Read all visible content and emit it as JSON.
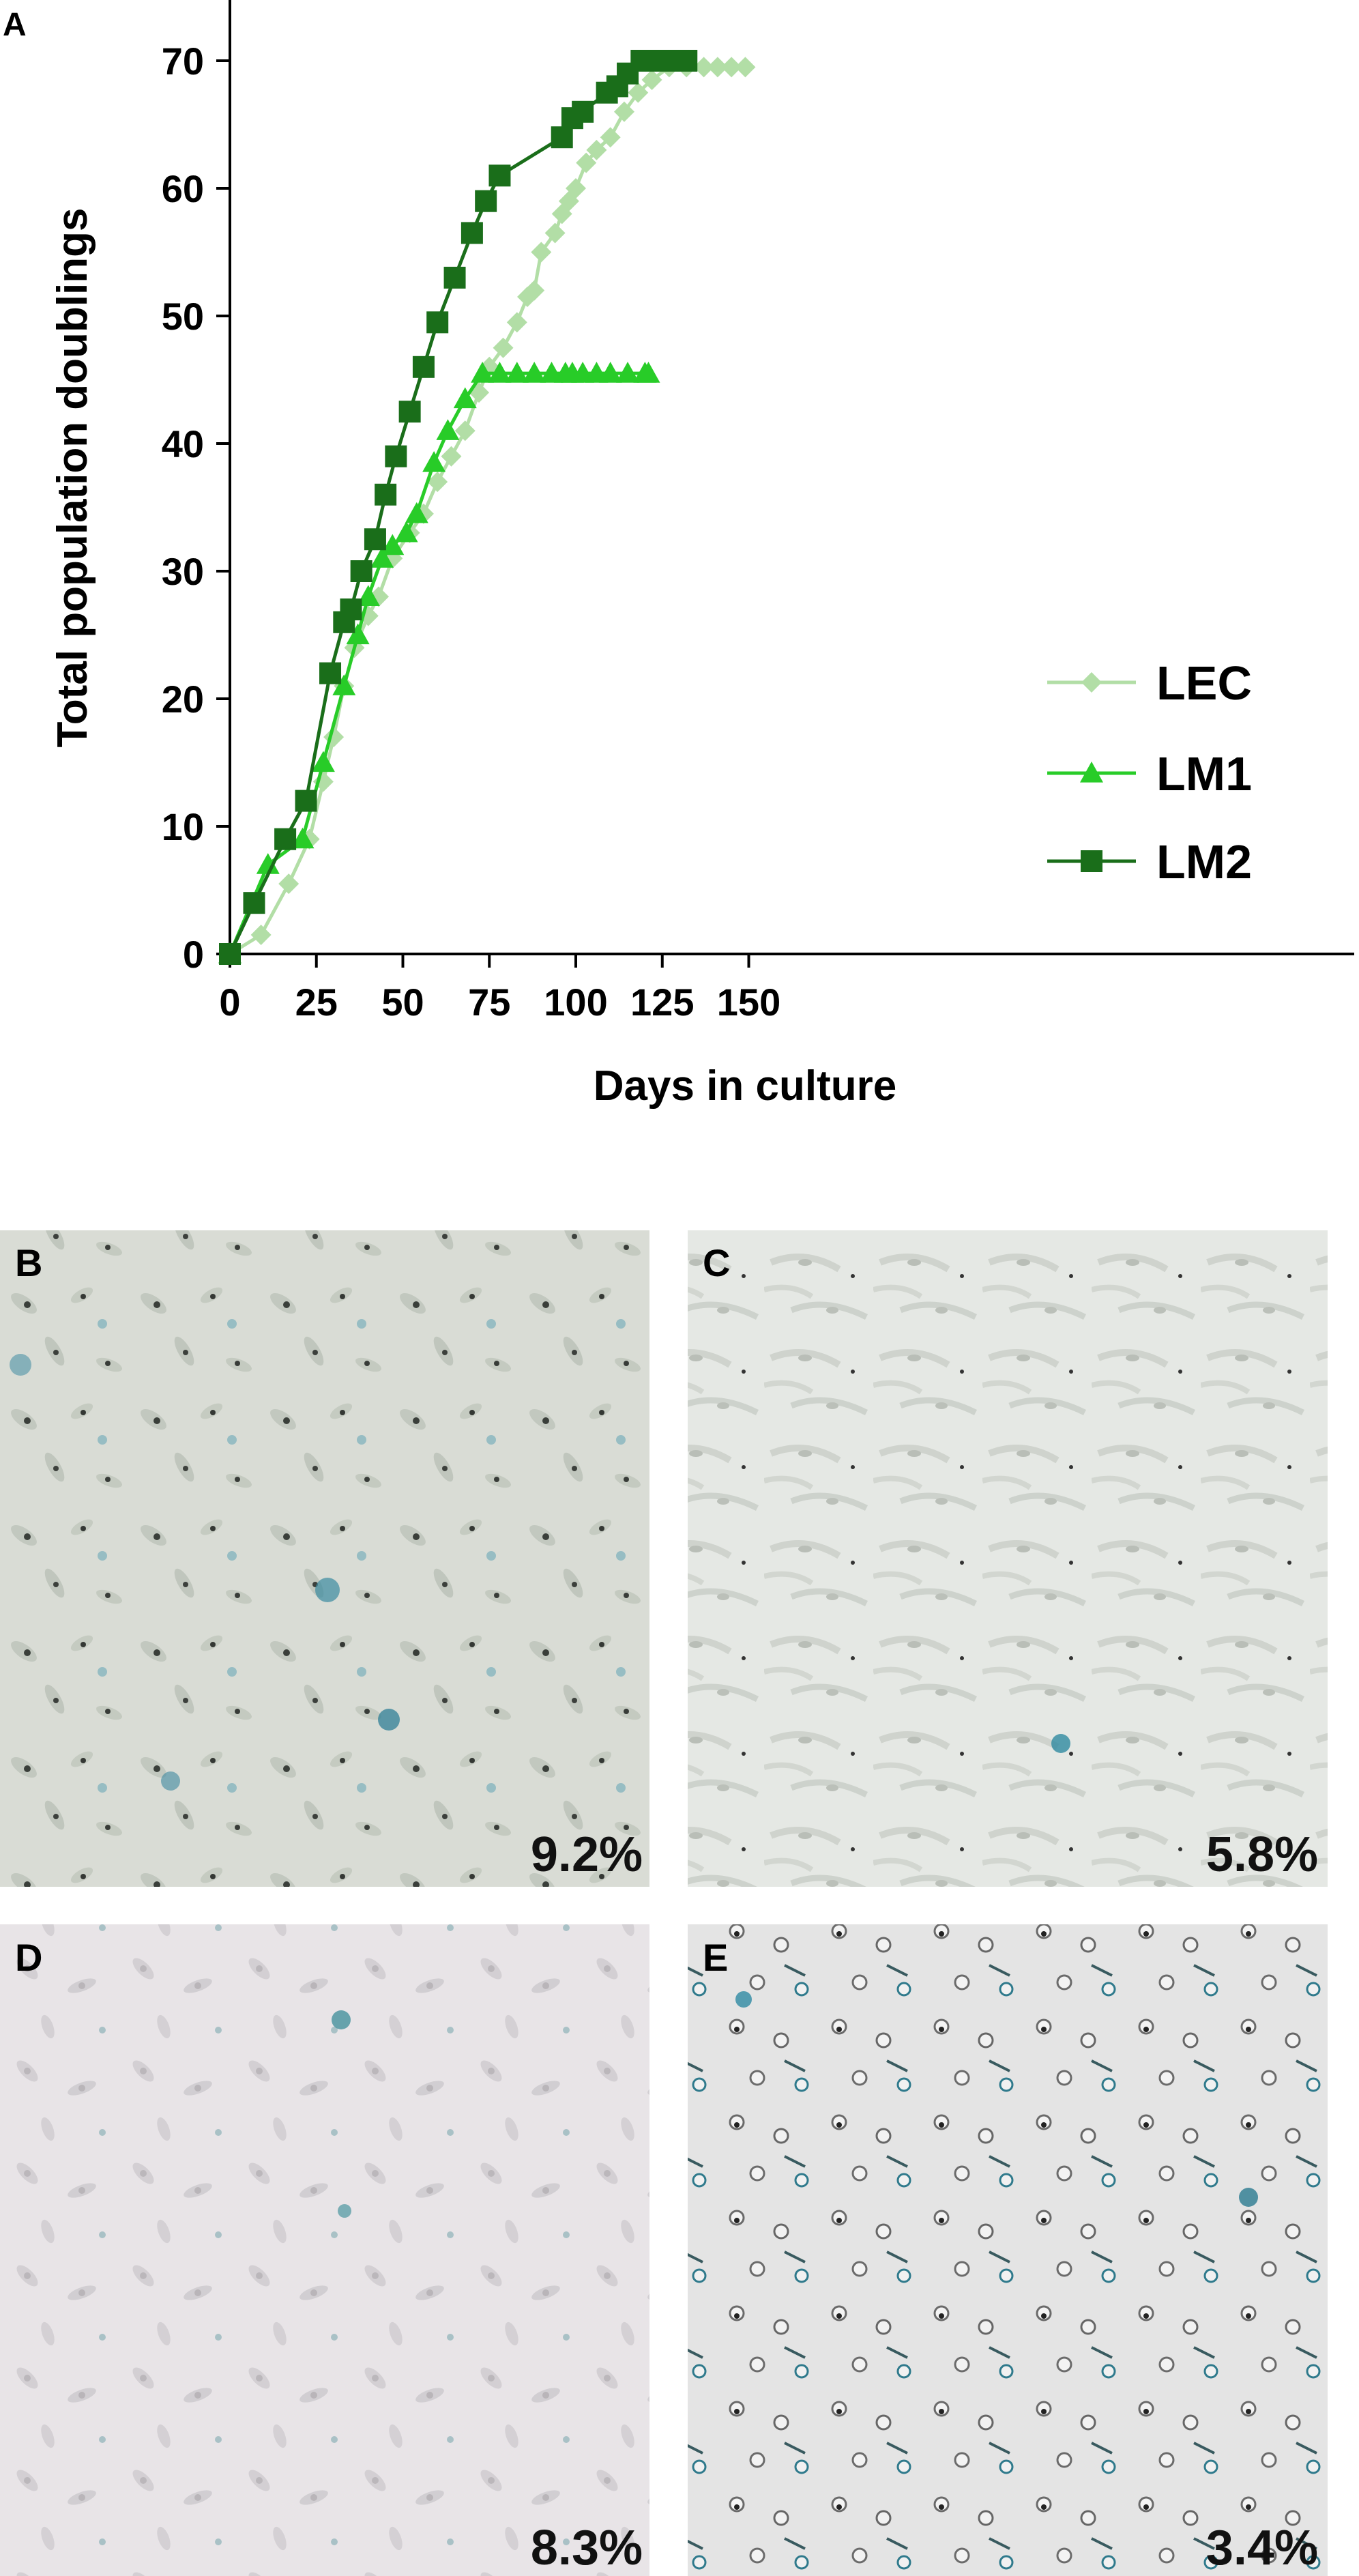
{
  "panel_labels": {
    "a": "A",
    "b": "B",
    "c": "C",
    "d": "D",
    "e": "E"
  },
  "colors": {
    "LEC": "#b2dea6",
    "LM1": "#28cc28",
    "LM2": "#1a6e1a",
    "panel_b_bg": "#d9dcd5",
    "panel_c_bg": "#e5e8e4",
    "panel_d_bg": "#e8e4e7",
    "panel_e_bg": "#e4e4e4",
    "stain_blue": "#2e8aa2"
  },
  "chart_data": {
    "type": "line",
    "title": "",
    "xlabel": "Days in culture",
    "ylabel": "Total population doublings",
    "xlim": [
      0,
      155
    ],
    "ylim": [
      0,
      75
    ],
    "xticks": [
      "0",
      "25",
      "50",
      "75",
      "100",
      "125",
      "150"
    ],
    "yticks": [
      "0",
      "10",
      "20",
      "30",
      "40",
      "50",
      "60",
      "70"
    ],
    "legend_position": "right",
    "series": [
      {
        "name": "LEC",
        "marker": "diamond",
        "color": "#b2dea6",
        "x": [
          0,
          9,
          17,
          23,
          27,
          30,
          33,
          36,
          40,
          43,
          47,
          52,
          56,
          60,
          64,
          68,
          72,
          75,
          79,
          83,
          86,
          88,
          90,
          94,
          96,
          98,
          100,
          103,
          106,
          110,
          114,
          118,
          122,
          127,
          132,
          137,
          141,
          145,
          149
        ],
        "y": [
          0,
          1.5,
          5.5,
          9,
          13.5,
          17,
          21,
          24,
          26.5,
          28,
          31,
          33,
          34.5,
          37,
          39,
          41,
          44,
          46,
          47.5,
          49.5,
          51.5,
          52,
          55,
          56.5,
          58,
          59,
          60,
          62,
          63,
          64,
          66,
          67.5,
          68.5,
          69.5,
          69.5,
          69.5,
          69.5,
          69.5,
          69.5
        ]
      },
      {
        "name": "LM1",
        "marker": "triangle",
        "color": "#28cc28",
        "x": [
          0,
          11,
          21,
          27,
          33,
          37,
          40,
          44,
          47,
          51,
          54,
          59,
          63,
          68,
          73,
          78,
          83,
          88,
          93,
          97,
          99,
          102,
          106,
          110,
          115,
          120,
          121
        ],
        "y": [
          0,
          7,
          9,
          15,
          21,
          25,
          28,
          31,
          32,
          33,
          34.5,
          38.5,
          41,
          43.5,
          45.5,
          45.5,
          45.5,
          45.5,
          45.5,
          45.5,
          45.5,
          45.5,
          45.5,
          45.5,
          45.5,
          45.5,
          45.5
        ]
      },
      {
        "name": "LM2",
        "marker": "square",
        "color": "#1a6e1a",
        "x": [
          0,
          7,
          16,
          22,
          29,
          33,
          35,
          38,
          42,
          45,
          48,
          52,
          56,
          60,
          65,
          70,
          74,
          78,
          96,
          99,
          102,
          109,
          112,
          115,
          119,
          121,
          123,
          125,
          126,
          128,
          129,
          131,
          132
        ],
        "y": [
          0,
          4,
          9,
          12,
          22,
          26,
          27,
          30,
          32.5,
          36,
          39,
          42.5,
          46,
          49.5,
          53,
          56.5,
          59,
          61,
          64,
          65.5,
          66,
          67.5,
          68,
          69,
          70,
          70,
          70,
          70,
          70,
          70,
          70,
          70,
          70
        ]
      }
    ]
  },
  "micrographs": [
    {
      "label": "B",
      "percent": "9.2%"
    },
    {
      "label": "C",
      "percent": "5.8%"
    },
    {
      "label": "D",
      "percent": "8.3%"
    },
    {
      "label": "E",
      "percent": "3.4%"
    }
  ]
}
